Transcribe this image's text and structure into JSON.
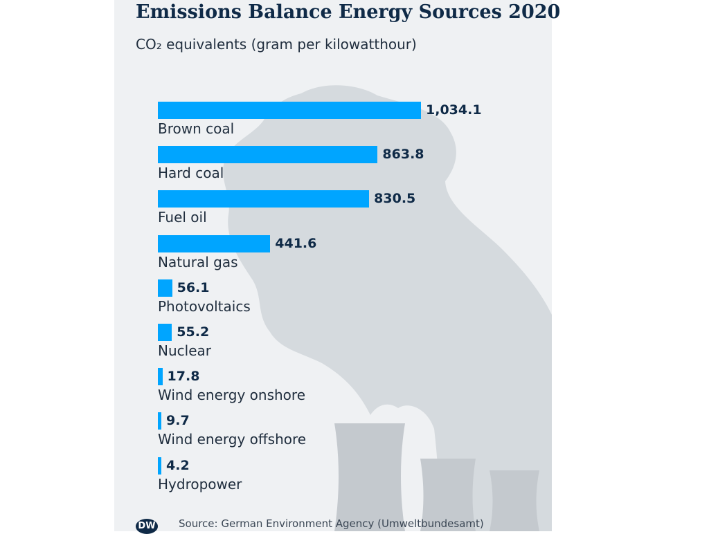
{
  "header": {
    "title": "Emissions Balance Energy Sources 2020",
    "subtitle": "CO₂ equivalents (gram per kilowatthour)"
  },
  "footer": {
    "logo_text": "DW",
    "source": "Source: German Environment Agency (Umweltbundesamt)"
  },
  "colors": {
    "bar": "#00a5ff",
    "text": "#0f2a47",
    "panel": "#eff1f3"
  },
  "chart_data": {
    "type": "bar",
    "orientation": "horizontal",
    "title": "Emissions Balance Energy Sources 2020",
    "subtitle": "CO₂ equivalents (gram per kilowatthour)",
    "categories": [
      "Brown coal",
      "Hard coal",
      "Fuel oil",
      "Natural gas",
      "Photovoltaics",
      "Nuclear",
      "Wind energy onshore",
      "Wind energy offshore",
      "Hydropower"
    ],
    "values": [
      1034.1,
      863.8,
      830.5,
      441.6,
      56.1,
      55.2,
      17.8,
      9.7,
      4.2
    ],
    "value_labels": [
      "1,034.1",
      "863.8",
      "830.5",
      "441.6",
      "56.1",
      "55.2",
      "17.8",
      "9.7",
      "4.2"
    ],
    "xlim": [
      0,
      1034.1
    ],
    "grid": false,
    "legend": "none"
  }
}
